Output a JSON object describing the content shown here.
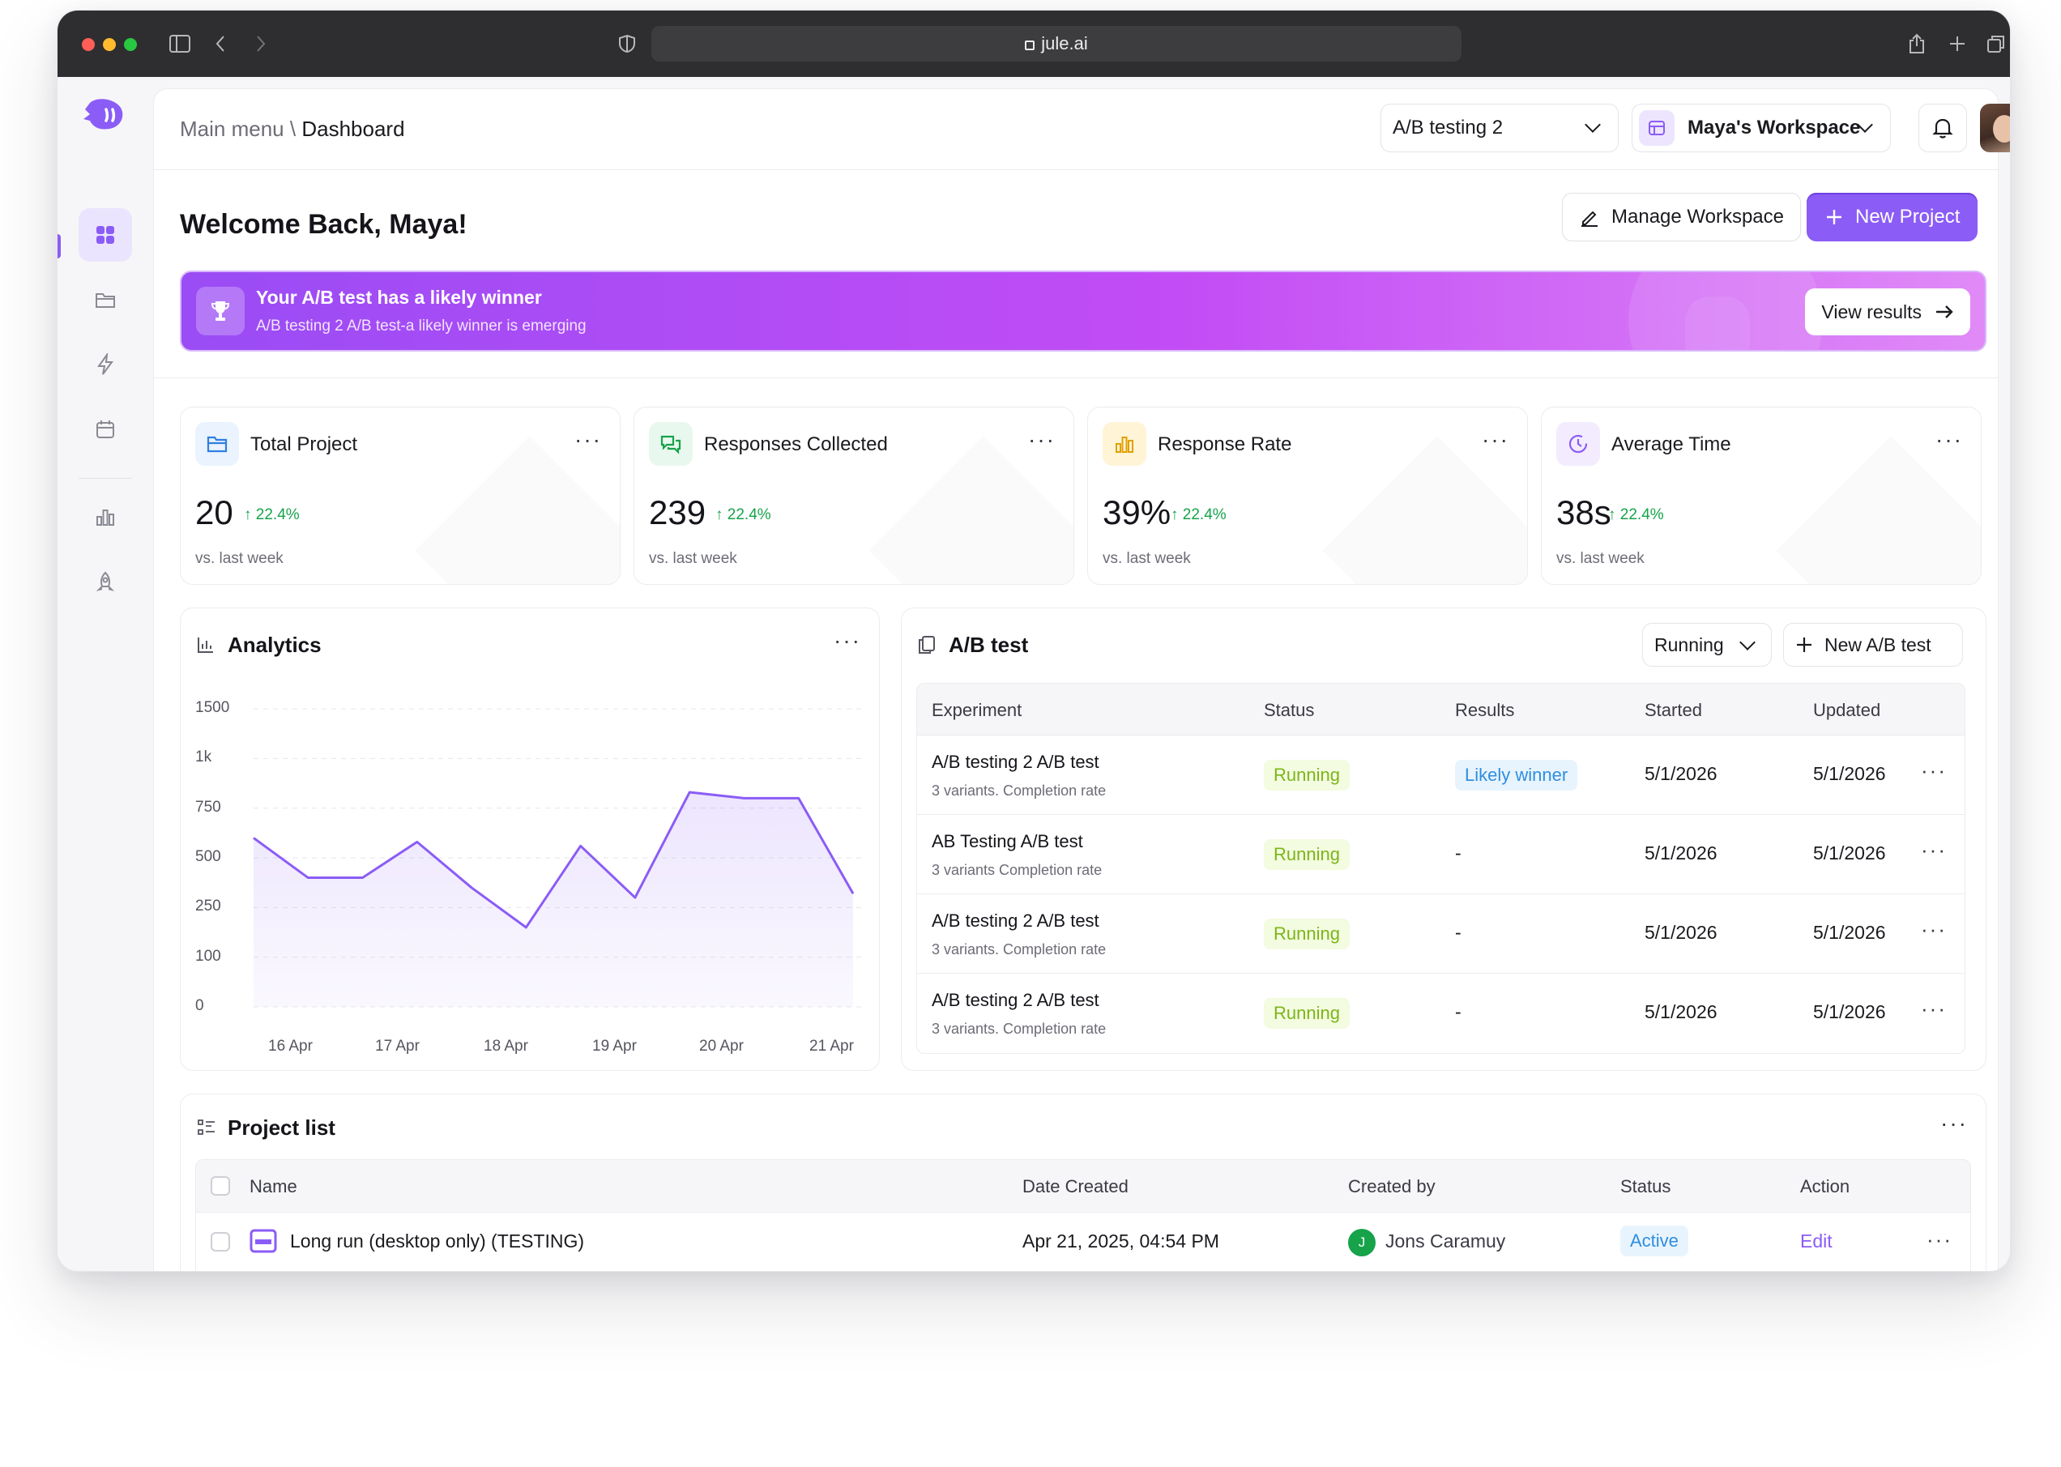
{
  "browser": {
    "url": "jule.ai"
  },
  "breadcrumb": {
    "root": "Main menu",
    "sep": "\\",
    "current": "Dashboard"
  },
  "header": {
    "test_select": "A/B testing 2",
    "workspace_select": "Maya's Workspace"
  },
  "welcome": {
    "title": "Welcome Back, Maya!"
  },
  "actions": {
    "manage": "Manage Workspace",
    "new_project": "New Project"
  },
  "banner": {
    "title": "Your A/B test has a likely winner",
    "subtitle": "A/B testing 2 A/B test-a likely winner is emerging",
    "button": "View results"
  },
  "stats": [
    {
      "label": "Total Project",
      "value": "20",
      "change": "22.4%",
      "foot": "vs. last week",
      "icon": "folder-icon"
    },
    {
      "label": "Responses Collected",
      "value": "239",
      "change": "22.4%",
      "foot": "vs. last week",
      "icon": "chat-icon"
    },
    {
      "label": "Response Rate",
      "value": "39%",
      "change": "22.4%",
      "foot": "vs. last week",
      "icon": "bar-chart-icon"
    },
    {
      "label": "Average Time",
      "value": "38s",
      "change": "22.4%",
      "foot": "vs. last week",
      "icon": "clock-icon"
    }
  ],
  "analytics": {
    "title": "Analytics"
  },
  "chart_data": {
    "type": "area",
    "title": "Analytics",
    "x": [
      "16 Apr",
      "17 Apr",
      "18 Apr",
      "19 Apr",
      "20 Apr",
      "21 Apr"
    ],
    "y_ticks": [
      "1500",
      "1k",
      "750",
      "500",
      "250",
      "100",
      "0"
    ],
    "points": [
      {
        "x": "16 Apr",
        "y": 600
      },
      {
        "x": "",
        "y": 400
      },
      {
        "x": "17 Apr",
        "y": 400
      },
      {
        "x": "",
        "y": 580
      },
      {
        "x": "18 Apr",
        "y": 350
      },
      {
        "x": "",
        "y": 190
      },
      {
        "x": "19 Apr",
        "y": 560
      },
      {
        "x": "",
        "y": 300
      },
      {
        "x": "20 Apr",
        "y": 830
      },
      {
        "x": "",
        "y": 800
      },
      {
        "x": "21 Apr",
        "y": 800
      },
      {
        "x": "",
        "y": 320
      }
    ],
    "color": "#8b5cf6",
    "grid": true
  },
  "abtest": {
    "title": "A/B test",
    "filter": "Running",
    "new_button": "New A/B test",
    "columns": [
      "Experiment",
      "Status",
      "Results",
      "Started",
      "Updated"
    ],
    "rows": [
      {
        "name": "A/B testing 2 A/B test",
        "sub": "3 variants. Completion rate",
        "status": "Running",
        "result": "Likely winner",
        "started": "5/1/2026",
        "updated": "5/1/2026"
      },
      {
        "name": "AB Testing A/B test",
        "sub": "3 variants Completion rate",
        "status": "Running",
        "result": "-",
        "started": "5/1/2026",
        "updated": "5/1/2026"
      },
      {
        "name": "A/B testing 2 A/B test",
        "sub": "3 variants. Completion rate",
        "status": "Running",
        "result": "-",
        "started": "5/1/2026",
        "updated": "5/1/2026"
      },
      {
        "name": "A/B testing 2 A/B test",
        "sub": "3 variants. Completion rate",
        "status": "Running",
        "result": "-",
        "started": "5/1/2026",
        "updated": "5/1/2026"
      }
    ]
  },
  "projects": {
    "title": "Project list",
    "columns": [
      "Name",
      "Date Created",
      "Created by",
      "Status",
      "Action"
    ],
    "rows": [
      {
        "name": "Long run (desktop only) (TESTING)",
        "date": "Apr 21, 2025, 04:54 PM",
        "creator": "Jons Caramuy",
        "creator_initial": "J",
        "status": "Active",
        "action": "Edit"
      }
    ]
  },
  "more_glyph": "···",
  "colors": {
    "accent": "#8b5cf6",
    "success": "#16a34a",
    "running": "#7cb518",
    "info": "#2f8ee0"
  }
}
